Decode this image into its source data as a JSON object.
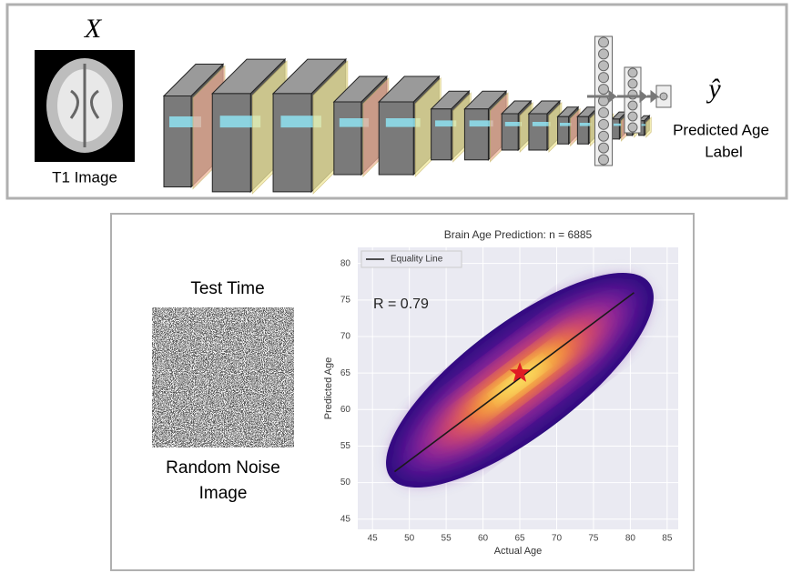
{
  "figure": {
    "input_symbol": "X",
    "input_label": "T1 Image",
    "output_symbol": "ŷ",
    "output_label_1": "Predicted  Age",
    "output_label_2": "Label",
    "test_label": "Test Time",
    "noise_label_1": "Random Noise",
    "noise_label_2": "Image"
  },
  "chart_data": {
    "type": "scatter",
    "title": "Brain Age Prediction: n = 6885",
    "xlabel": "Actual Age",
    "ylabel": "Predicted Age",
    "annotation": "R = 0.79",
    "xlim": [
      43,
      86.5
    ],
    "ylim": [
      43.6,
      82.2
    ],
    "xticks": [
      45,
      50,
      55,
      60,
      65,
      70,
      75,
      80,
      85
    ],
    "yticks": [
      45,
      50,
      55,
      60,
      65,
      70,
      75,
      80
    ],
    "grid": true,
    "legend": "upper left",
    "series": [
      {
        "name": "Equality Line",
        "type": "line",
        "color": "#1a1a1a",
        "x": [
          48,
          80.5
        ],
        "values": [
          51.5,
          76
        ]
      }
    ],
    "highlight": {
      "x": 65,
      "y": 65,
      "color": "#e01b24"
    }
  }
}
